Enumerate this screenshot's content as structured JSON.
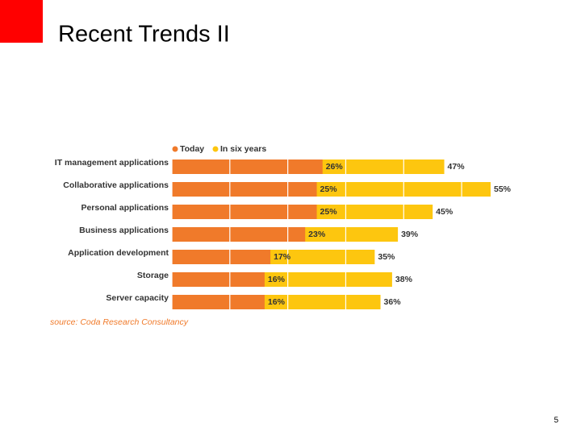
{
  "slide": {
    "title": "Recent Trends II",
    "page_number": "5"
  },
  "chart_data": {
    "type": "hbar_overlap",
    "categories": [
      "IT management applications",
      "Collaborative applications",
      "Personal applications",
      "Business applications",
      "Application development",
      "Storage",
      "Server capacity"
    ],
    "series": [
      {
        "name": "Today",
        "color": "#f07a2a",
        "values": [
          26,
          25,
          25,
          23,
          17,
          16,
          16
        ],
        "value_labels": [
          "26%",
          "25%",
          "25%",
          "23%",
          "17%",
          "16%",
          "16%"
        ]
      },
      {
        "name": "In six years",
        "color": "#fdc60f",
        "values": [
          47,
          55,
          45,
          39,
          35,
          38,
          36
        ],
        "value_labels": [
          "47%",
          "55%",
          "45%",
          "39%",
          "35%",
          "38%",
          "36%"
        ]
      }
    ],
    "xlim": [
      0,
      55
    ],
    "xticks": [
      0,
      10,
      20,
      30,
      40,
      50
    ],
    "grid": true,
    "tick_labels": false,
    "source": "source: Coda Research Consultancy"
  }
}
